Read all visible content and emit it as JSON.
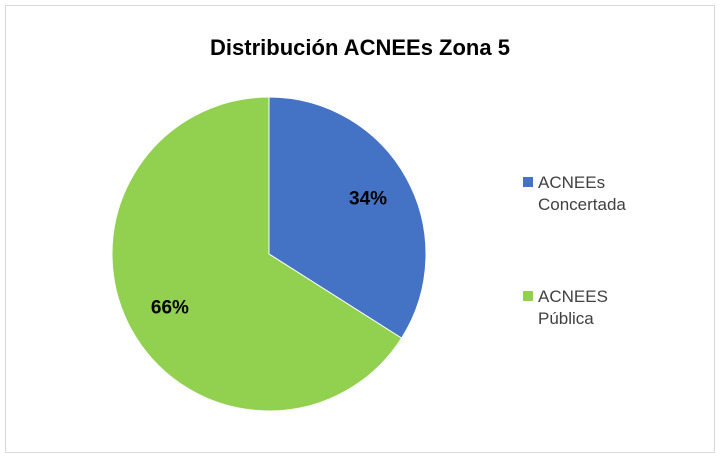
{
  "chart_data": {
    "type": "pie",
    "title": "Distribución ACNEEs Zona 5",
    "categories": [
      "ACNEEs Concertada",
      "ACNEES Pública"
    ],
    "values": [
      34,
      66
    ],
    "value_labels": [
      "34%",
      "66%"
    ],
    "colors": [
      "#4472c4",
      "#92d050"
    ],
    "legend": "right"
  }
}
